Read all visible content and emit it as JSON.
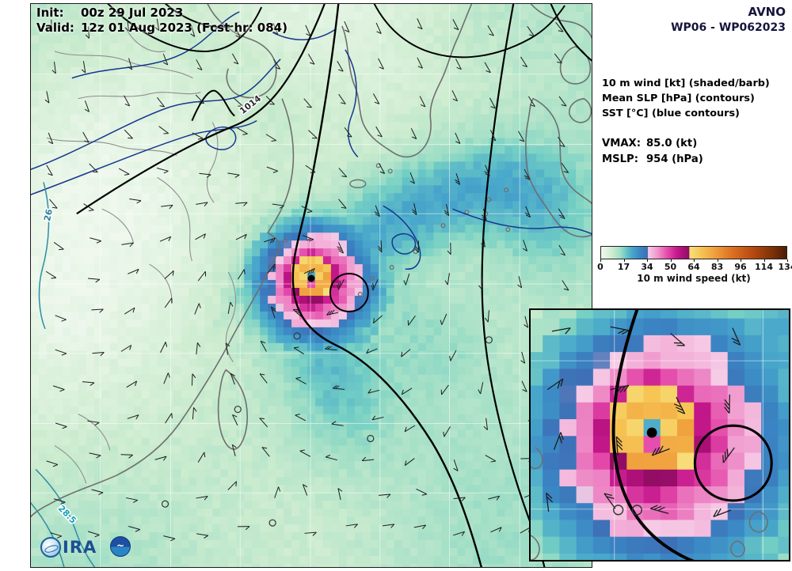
{
  "header": {
    "init_label": "Init:",
    "init_value": "00z 29 Jul 2023",
    "valid_label": "Valid:",
    "valid_value": "12z 01 Aug 2023 (Fcst hr: 084)"
  },
  "model": {
    "name": "AVNO",
    "storm_id": "WP06 - WP062023"
  },
  "legend": {
    "line1": "10 m wind [kt] (shaded/barb)",
    "line2": "Mean SLP [hPa] (contours)",
    "line3": "SST [°C] (blue contours)"
  },
  "stats": {
    "vmax_label": "VMAX:",
    "vmax_value": "85.0 (kt)",
    "mslp_label": "MSLP:",
    "mslp_value": "954 (hPa)"
  },
  "colorbar": {
    "ticks": [
      0,
      17,
      34,
      50,
      64,
      83,
      96,
      114,
      134
    ],
    "caption": "10 m wind speed (kt)",
    "stops": [
      [
        0,
        "#f2f9f0"
      ],
      [
        8,
        "#cdeccf"
      ],
      [
        14,
        "#9fdec6"
      ],
      [
        17,
        "#74cfc4"
      ],
      [
        22,
        "#49a8cb"
      ],
      [
        28,
        "#3a86c4"
      ],
      [
        33.6,
        "#3f6eb5"
      ],
      [
        34,
        "#f6cce6"
      ],
      [
        41,
        "#ef94cb"
      ],
      [
        48,
        "#e44aaa"
      ],
      [
        55,
        "#c5188c"
      ],
      [
        60,
        "#a80f74"
      ],
      [
        63.6,
        "#8d0d60"
      ],
      [
        64,
        "#f7e07d"
      ],
      [
        72,
        "#f6c554"
      ],
      [
        83,
        "#ef9c3b"
      ],
      [
        95,
        "#dd6f22"
      ],
      [
        110,
        "#b34a10"
      ],
      [
        124,
        "#7c3008"
      ],
      [
        134,
        "#4a1d04"
      ]
    ]
  },
  "map_labels": {
    "slp": "1014",
    "sst_left": "26",
    "sst_bottom": "28.5"
  },
  "logo": {
    "text": "CIRA",
    "text_rest": "IRA"
  },
  "chart_data": {
    "type": "heatmap",
    "title": "AVNO WP06 - WP062023 10 m wind forecast",
    "init": "00z 29 Jul 2023",
    "valid": "12z 01 Aug 2023",
    "fcst_hr": 84,
    "vmax_kt": 85.0,
    "mslp_hpa": 954,
    "colorbar_ticks": [
      0,
      17,
      34,
      50,
      64,
      83,
      96,
      114,
      134
    ],
    "colorbar_label": "10 m wind speed (kt)",
    "slp_contour_label": "1014",
    "sst_contour_labels": [
      "26",
      "28.5"
    ]
  }
}
